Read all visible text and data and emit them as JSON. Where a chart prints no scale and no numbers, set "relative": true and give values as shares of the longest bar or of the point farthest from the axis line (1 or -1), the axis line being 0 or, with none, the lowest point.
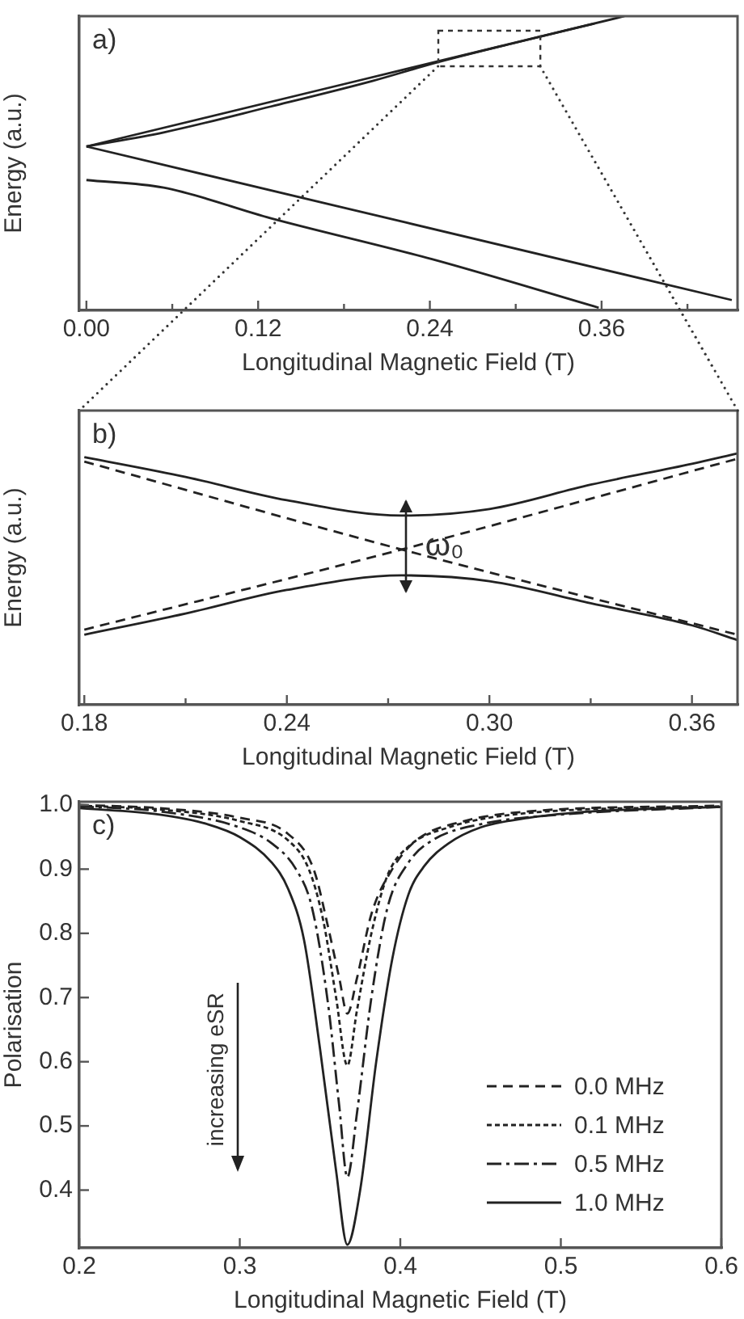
{
  "chart_data": [
    {
      "type": "line",
      "xlabel": "Longitudinal Magnetic Field (T)",
      "ylabel": "Energy (a.u.)",
      "relative": true,
      "marker": "none",
      "annotations": [
        "a)"
      ],
      "xlim": [
        -0.005,
        0.455
      ],
      "xticks": [
        {
          "value": 0,
          "label": "0.00"
        },
        {
          "value": 0.06,
          "label": null
        },
        0.12,
        {
          "value": 0.18,
          "label": null
        },
        0.24,
        {
          "value": 0.3,
          "label": null
        },
        0.36,
        {
          "value": 0.42,
          "label": null
        }
      ],
      "series": [
        {
          "color": "#222222",
          "line_style": "solid",
          "x": [
            0,
            0.376
          ],
          "values": [
            0.557,
            1
          ]
        },
        {
          "color": "#222222",
          "line_style": "solid",
          "x": [
            0,
            0.054,
            0.129,
            0.2,
            0.2415,
            0.3,
            0.355
          ],
          "values": [
            0.557,
            0.605,
            0.693,
            0.78,
            0.838,
            0.91,
            0.975
          ]
        },
        {
          "color": "#222222",
          "line_style": "solid",
          "x": [
            0,
            0.451
          ],
          "values": [
            0.557,
            0.035
          ]
        },
        {
          "color": "#222222",
          "line_style": "solid",
          "x": [
            0,
            0.054,
            0.129,
            0.2415,
            0.358
          ],
          "values": [
            0.443,
            0.417,
            0.313,
            0.174,
            0.009
          ]
        }
      ]
    },
    {
      "type": "line",
      "xlabel": "Longitudinal Magnetic Field (T)",
      "ylabel": "Energy (a.u.)",
      "relative": true,
      "marker": "none",
      "annotations": [
        "b)",
        {
          "text": "ω₀",
          "x": 0.281,
          "y": 0.632
        }
      ],
      "xlim": [
        0.1785,
        0.3735
      ],
      "xticks": [
        0.18,
        {
          "value": 0.21,
          "label": null
        },
        0.24,
        {
          "value": 0.27,
          "label": null
        },
        {
          "value": 0.3,
          "label": "0.30"
        },
        {
          "value": 0.33,
          "label": null
        },
        0.36
      ],
      "series": [
        {
          "color": "#222222",
          "line_style": "solid",
          "x": [
            0.18,
            0.21,
            0.24,
            0.274,
            0.3,
            0.33,
            0.36,
            0.3734
          ],
          "values": [
            0.986,
            0.907,
            0.814,
            0.753,
            0.779,
            0.876,
            0.959,
            1
          ]
        },
        {
          "color": "#222222",
          "line_style": "solid",
          "x": [
            0.18,
            0.21,
            0.24,
            0.274,
            0.3,
            0.33,
            0.36,
            0.3734
          ],
          "values": [
            0.279,
            0.363,
            0.457,
            0.515,
            0.492,
            0.404,
            0.316,
            0.258
          ]
        },
        {
          "color": "#222222",
          "line_style": "dashed",
          "x": [
            0.18,
            0.274,
            0.3734
          ],
          "values": [
            0.968,
            0.618,
            0.279
          ]
        },
        {
          "color": "#222222",
          "line_style": "dashed",
          "x": [
            0.18,
            0.274,
            0.3734
          ],
          "values": [
            0.299,
            0.618,
            0.979
          ]
        }
      ]
    },
    {
      "type": "line",
      "xlabel": "Longitudinal Magnetic Field (T)",
      "ylabel": "Polarisation",
      "marker": "none",
      "legend": "bottom right",
      "annotations": [
        "c)",
        "increasing eSR"
      ],
      "xlim": [
        0.2,
        0.6
      ],
      "xticks": [
        0.2,
        0.3,
        0.4,
        0.5,
        0.6
      ],
      "ylim": [
        0.31,
        1.005
      ],
      "yticks": [
        0.4,
        0.5,
        0.6,
        0.7,
        0.8,
        0.9,
        {
          "value": 1,
          "label": "1.0"
        }
      ],
      "series": [
        {
          "name": "0.0 MHz",
          "color": "#222222",
          "line_style": "dashed",
          "x": [
            0.2,
            0.25,
            0.3,
            0.33,
            0.346,
            0.355,
            0.362,
            0.367,
            0.373,
            0.382,
            0.395,
            0.41,
            0.44,
            0.48,
            0.6
          ],
          "values": [
            1,
            0.995,
            0.98,
            0.955,
            0.9,
            0.81,
            0.73,
            0.675,
            0.73,
            0.83,
            0.9,
            0.945,
            0.975,
            0.99,
            0.999
          ]
        },
        {
          "name": "0.1 MHz",
          "color": "#222222",
          "line_style": "dotted",
          "x": [
            0.2,
            0.25,
            0.3,
            0.33,
            0.343,
            0.352,
            0.36,
            0.367,
            0.373,
            0.382,
            0.392,
            0.405,
            0.43,
            0.47,
            0.6
          ],
          "values": [
            0.999,
            0.993,
            0.975,
            0.945,
            0.9,
            0.82,
            0.7,
            0.594,
            0.68,
            0.8,
            0.89,
            0.935,
            0.965,
            0.985,
            0.998
          ]
        },
        {
          "name": "0.5 MHz",
          "color": "#222222",
          "line_style": "dashdot",
          "x": [
            0.2,
            0.25,
            0.3,
            0.32,
            0.335,
            0.345,
            0.355,
            0.362,
            0.367,
            0.373,
            0.382,
            0.392,
            0.405,
            0.42,
            0.45,
            0.5,
            0.6
          ],
          "values": [
            0.998,
            0.99,
            0.965,
            0.94,
            0.9,
            0.84,
            0.69,
            0.53,
            0.42,
            0.52,
            0.7,
            0.84,
            0.91,
            0.945,
            0.97,
            0.985,
            0.997
          ]
        },
        {
          "name": "1.0 MHz",
          "color": "#222222",
          "line_style": "solid",
          "x": [
            0.2,
            0.25,
            0.28,
            0.3,
            0.32,
            0.33,
            0.34,
            0.35,
            0.36,
            0.367,
            0.375,
            0.385,
            0.395,
            0.405,
            0.415,
            0.43,
            0.45,
            0.48,
            0.52,
            0.6
          ],
          "values": [
            0.995,
            0.985,
            0.97,
            0.95,
            0.91,
            0.87,
            0.79,
            0.62,
            0.43,
            0.315,
            0.4,
            0.6,
            0.76,
            0.86,
            0.905,
            0.94,
            0.965,
            0.98,
            0.99,
            0.997
          ]
        }
      ]
    }
  ]
}
